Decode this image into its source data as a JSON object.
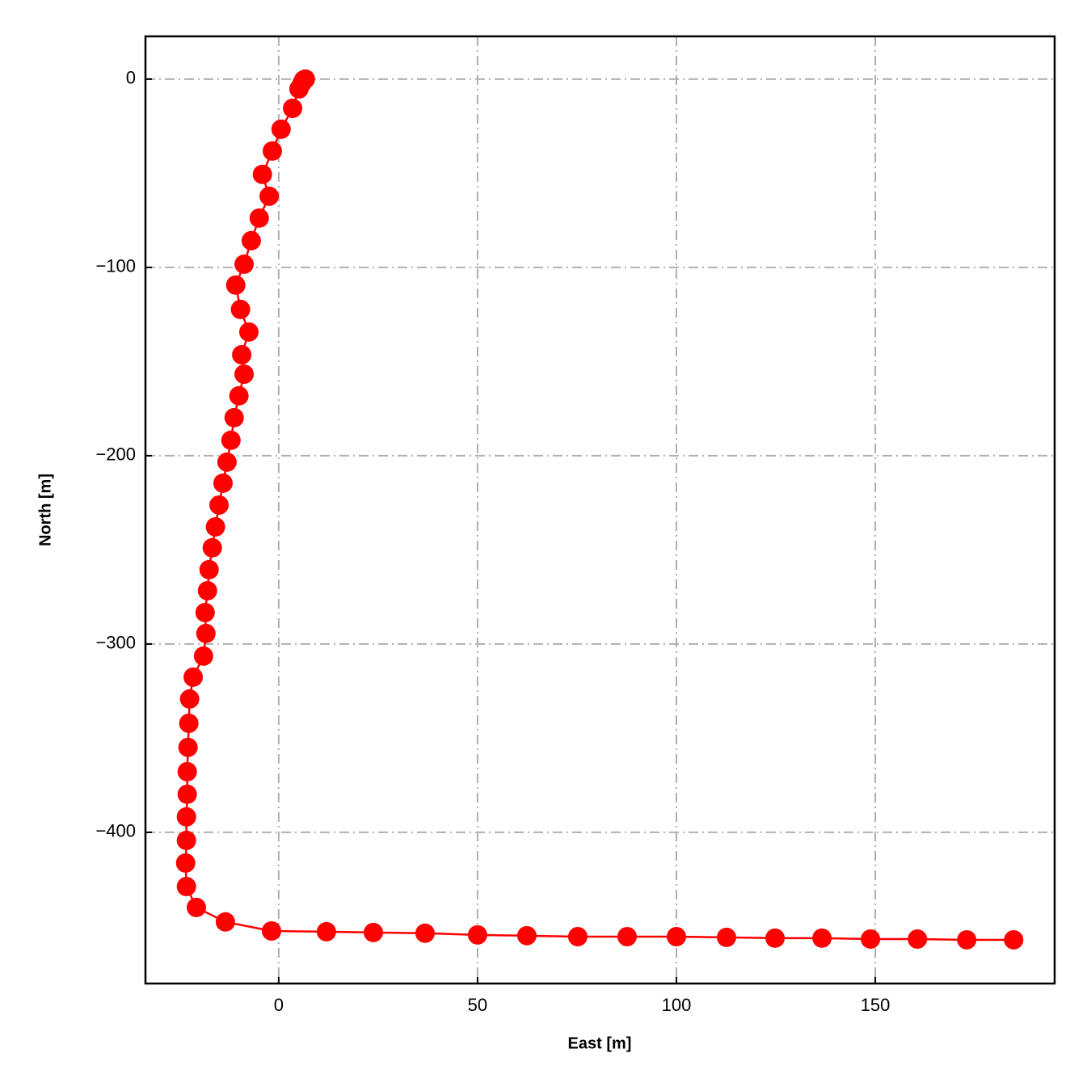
{
  "chart_data": {
    "type": "line",
    "xlabel": "East [m]",
    "ylabel": "North [m]",
    "x": [
      6.7,
      6.3,
      5.9,
      5.1,
      3.5,
      0.6,
      -1.6,
      -4.1,
      -2.4,
      -4.9,
      -6.9,
      -8.7,
      -10.8,
      -9.6,
      -7.5,
      -9.3,
      -8.7,
      -10.0,
      -11.2,
      -12.0,
      -13.0,
      -14.0,
      -15.0,
      -15.9,
      -16.7,
      -17.5,
      -17.9,
      -18.5,
      -18.3,
      -18.9,
      -21.5,
      -22.4,
      -22.6,
      -22.8,
      -23.0,
      -23.0,
      -23.2,
      -23.2,
      -23.4,
      -23.2,
      -20.7,
      -13.4,
      -1.8,
      12.0,
      23.8,
      36.8,
      50.0,
      62.4,
      75.2,
      87.6,
      100.0,
      112.6,
      124.8,
      136.6,
      148.8,
      160.6,
      173.0,
      184.8
    ],
    "series": [
      {
        "color": "#ff0000",
        "values": [
          0,
          -0.4,
          -2.0,
          -5.2,
          -15.5,
          -26.6,
          -38.2,
          -50.6,
          -62.2,
          -73.8,
          -85.8,
          -98.3,
          -109.4,
          -122.3,
          -134.3,
          -146.4,
          -156.7,
          -168.2,
          -179.8,
          -191.8,
          -203.4,
          -214.6,
          -226.2,
          -237.8,
          -248.9,
          -260.5,
          -271.7,
          -283.3,
          -294.4,
          -306.4,
          -317.6,
          -329.2,
          -342.1,
          -354.9,
          -367.8,
          -379.8,
          -391.8,
          -404.3,
          -416.3,
          -428.8,
          -439.9,
          -447.6,
          -452.4,
          -452.8,
          -453.2,
          -453.6,
          -454.5,
          -454.9,
          -455.4,
          -455.4,
          -455.4,
          -455.8,
          -456.2,
          -456.2,
          -456.7,
          -456.7,
          -457.1,
          -457.1
        ]
      }
    ],
    "xlim": [
      -33.5,
      195.1
    ],
    "ylim": [
      -480.3,
      22.7
    ],
    "xticks": [
      0,
      50,
      100,
      150
    ],
    "yticks": [
      0,
      {
        "value": -100,
        "label": "−100"
      },
      {
        "value": -200,
        "label": "−200"
      },
      {
        "value": -300,
        "label": "−300"
      },
      {
        "value": -400,
        "label": "−400"
      }
    ],
    "grid": true
  }
}
